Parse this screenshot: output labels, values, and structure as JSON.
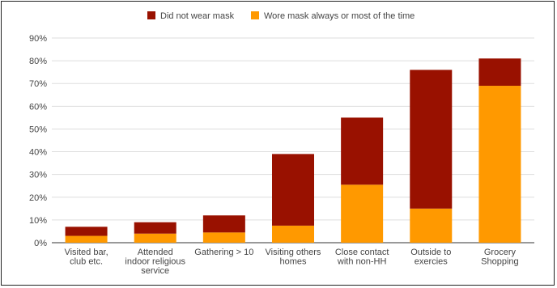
{
  "chart_data": {
    "type": "bar",
    "stacked": true,
    "title": "",
    "xlabel": "",
    "ylabel": "",
    "ylim": [
      0,
      90
    ],
    "y_tick_step": 10,
    "y_tick_format": "percent",
    "grid": true,
    "legend_position": "top",
    "categories": [
      [
        "Visited bar,",
        "club etc."
      ],
      [
        "Attended",
        "indoor religious",
        "service"
      ],
      [
        "Gathering > 10"
      ],
      [
        "Visiting others",
        "homes"
      ],
      [
        "Close contact",
        "with non-HH"
      ],
      [
        "Outside to",
        "exercies"
      ],
      [
        "Grocery",
        "Shopping"
      ]
    ],
    "series": [
      {
        "name": "Did not wear mask",
        "color": "#991100",
        "values": [
          4,
          5,
          7.5,
          31.5,
          29.5,
          61,
          12
        ]
      },
      {
        "name": "Wore mask always or most of the time",
        "color": "#ff9900",
        "values": [
          3,
          4,
          4.5,
          7.5,
          25.5,
          15,
          69
        ]
      }
    ]
  }
}
